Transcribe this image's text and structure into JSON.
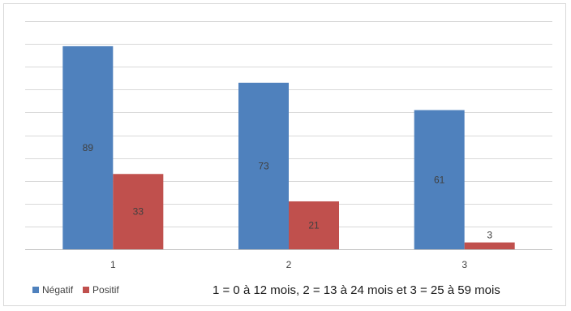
{
  "chart_data": {
    "type": "bar",
    "categories": [
      "1",
      "2",
      "3"
    ],
    "series": [
      {
        "name": "Négatif",
        "values": [
          89,
          73,
          61
        ],
        "color": "#4f81bd"
      },
      {
        "name": "Positif",
        "values": [
          33,
          21,
          3
        ],
        "color": "#c0504d"
      }
    ],
    "ylim": [
      0,
      100
    ],
    "y_ticks_visible": false,
    "grid": true,
    "legend_position": "bottom-left",
    "note": "1 = 0 à 12 mois, 2 = 13 à 24 mois et 3 = 25 à 59 mois"
  }
}
